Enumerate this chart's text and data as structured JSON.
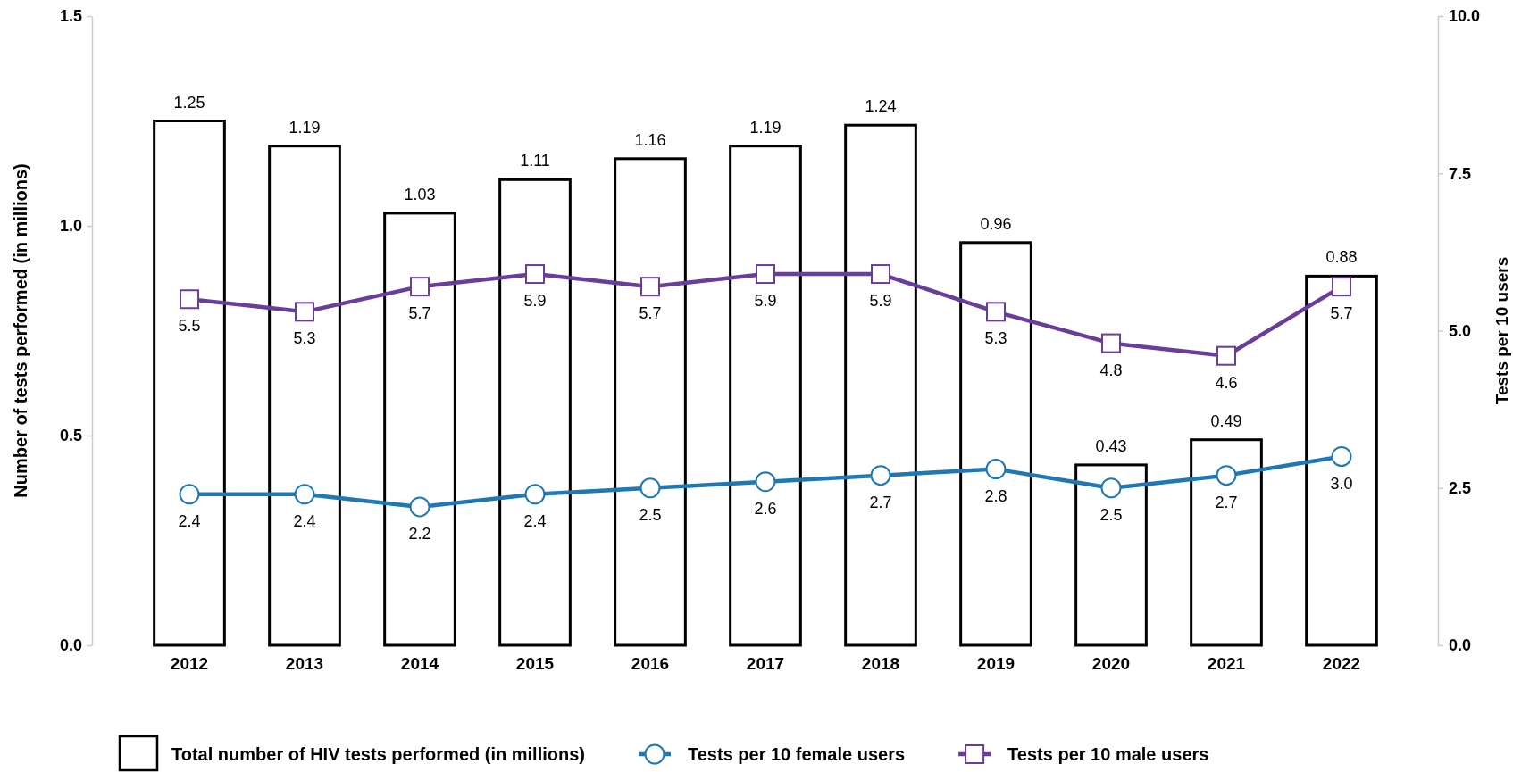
{
  "chart_data": {
    "type": "bar",
    "categories": [
      "2012",
      "2013",
      "2014",
      "2015",
      "2016",
      "2017",
      "2018",
      "2019",
      "2020",
      "2021",
      "2022"
    ],
    "series": [
      {
        "name": "Total number of HIV tests performed (in millions)",
        "color": "#000000",
        "values": [
          1.25,
          1.19,
          1.03,
          1.11,
          1.16,
          1.19,
          1.24,
          0.96,
          0.43,
          0.49,
          0.88
        ],
        "value_labels": [
          "1.25",
          "1.19",
          "1.03",
          "1.11",
          "1.16",
          "1.19",
          "1.24",
          "0.96",
          "0.43",
          "0.49",
          "0.88"
        ]
      },
      {
        "name": "Tests per 10 female users",
        "type": "line",
        "axis": "y2",
        "color": "#1f78b4",
        "marker": "circle",
        "values": [
          2.4,
          2.4,
          2.2,
          2.4,
          2.5,
          2.6,
          2.7,
          2.8,
          2.5,
          2.7,
          3.0
        ],
        "value_labels": [
          "2.4",
          "2.4",
          "2.2",
          "2.4",
          "2.5",
          "2.6",
          "2.7",
          "2.8",
          "2.5",
          "2.7",
          "3.0"
        ]
      },
      {
        "name": "Tests per 10 male users",
        "type": "line",
        "axis": "y2",
        "color": "#6a3d9a",
        "marker": "square",
        "values": [
          5.5,
          5.3,
          5.7,
          5.9,
          5.7,
          5.9,
          5.9,
          5.3,
          4.8,
          4.6,
          5.7
        ],
        "value_labels": [
          "5.5",
          "5.3",
          "5.7",
          "5.9",
          "5.7",
          "5.9",
          "5.9",
          "5.3",
          "4.8",
          "4.6",
          "5.7"
        ]
      }
    ],
    "ylabel": "Number of tests performed (in millions)",
    "y2label": "Tests per 10 users",
    "ylim": [
      0,
      1.5
    ],
    "yticks": [
      {
        "value": 0,
        "label": "0.0"
      },
      0.5,
      {
        "value": 1,
        "label": "1.0"
      },
      1.5
    ],
    "y2lim": [
      0,
      10
    ],
    "y2ticks": [
      {
        "value": 0,
        "label": "0.0"
      },
      2.5,
      {
        "value": 5,
        "label": "5.0"
      },
      7.5,
      {
        "value": 10,
        "label": "10.0"
      }
    ],
    "legend": "bottom"
  }
}
